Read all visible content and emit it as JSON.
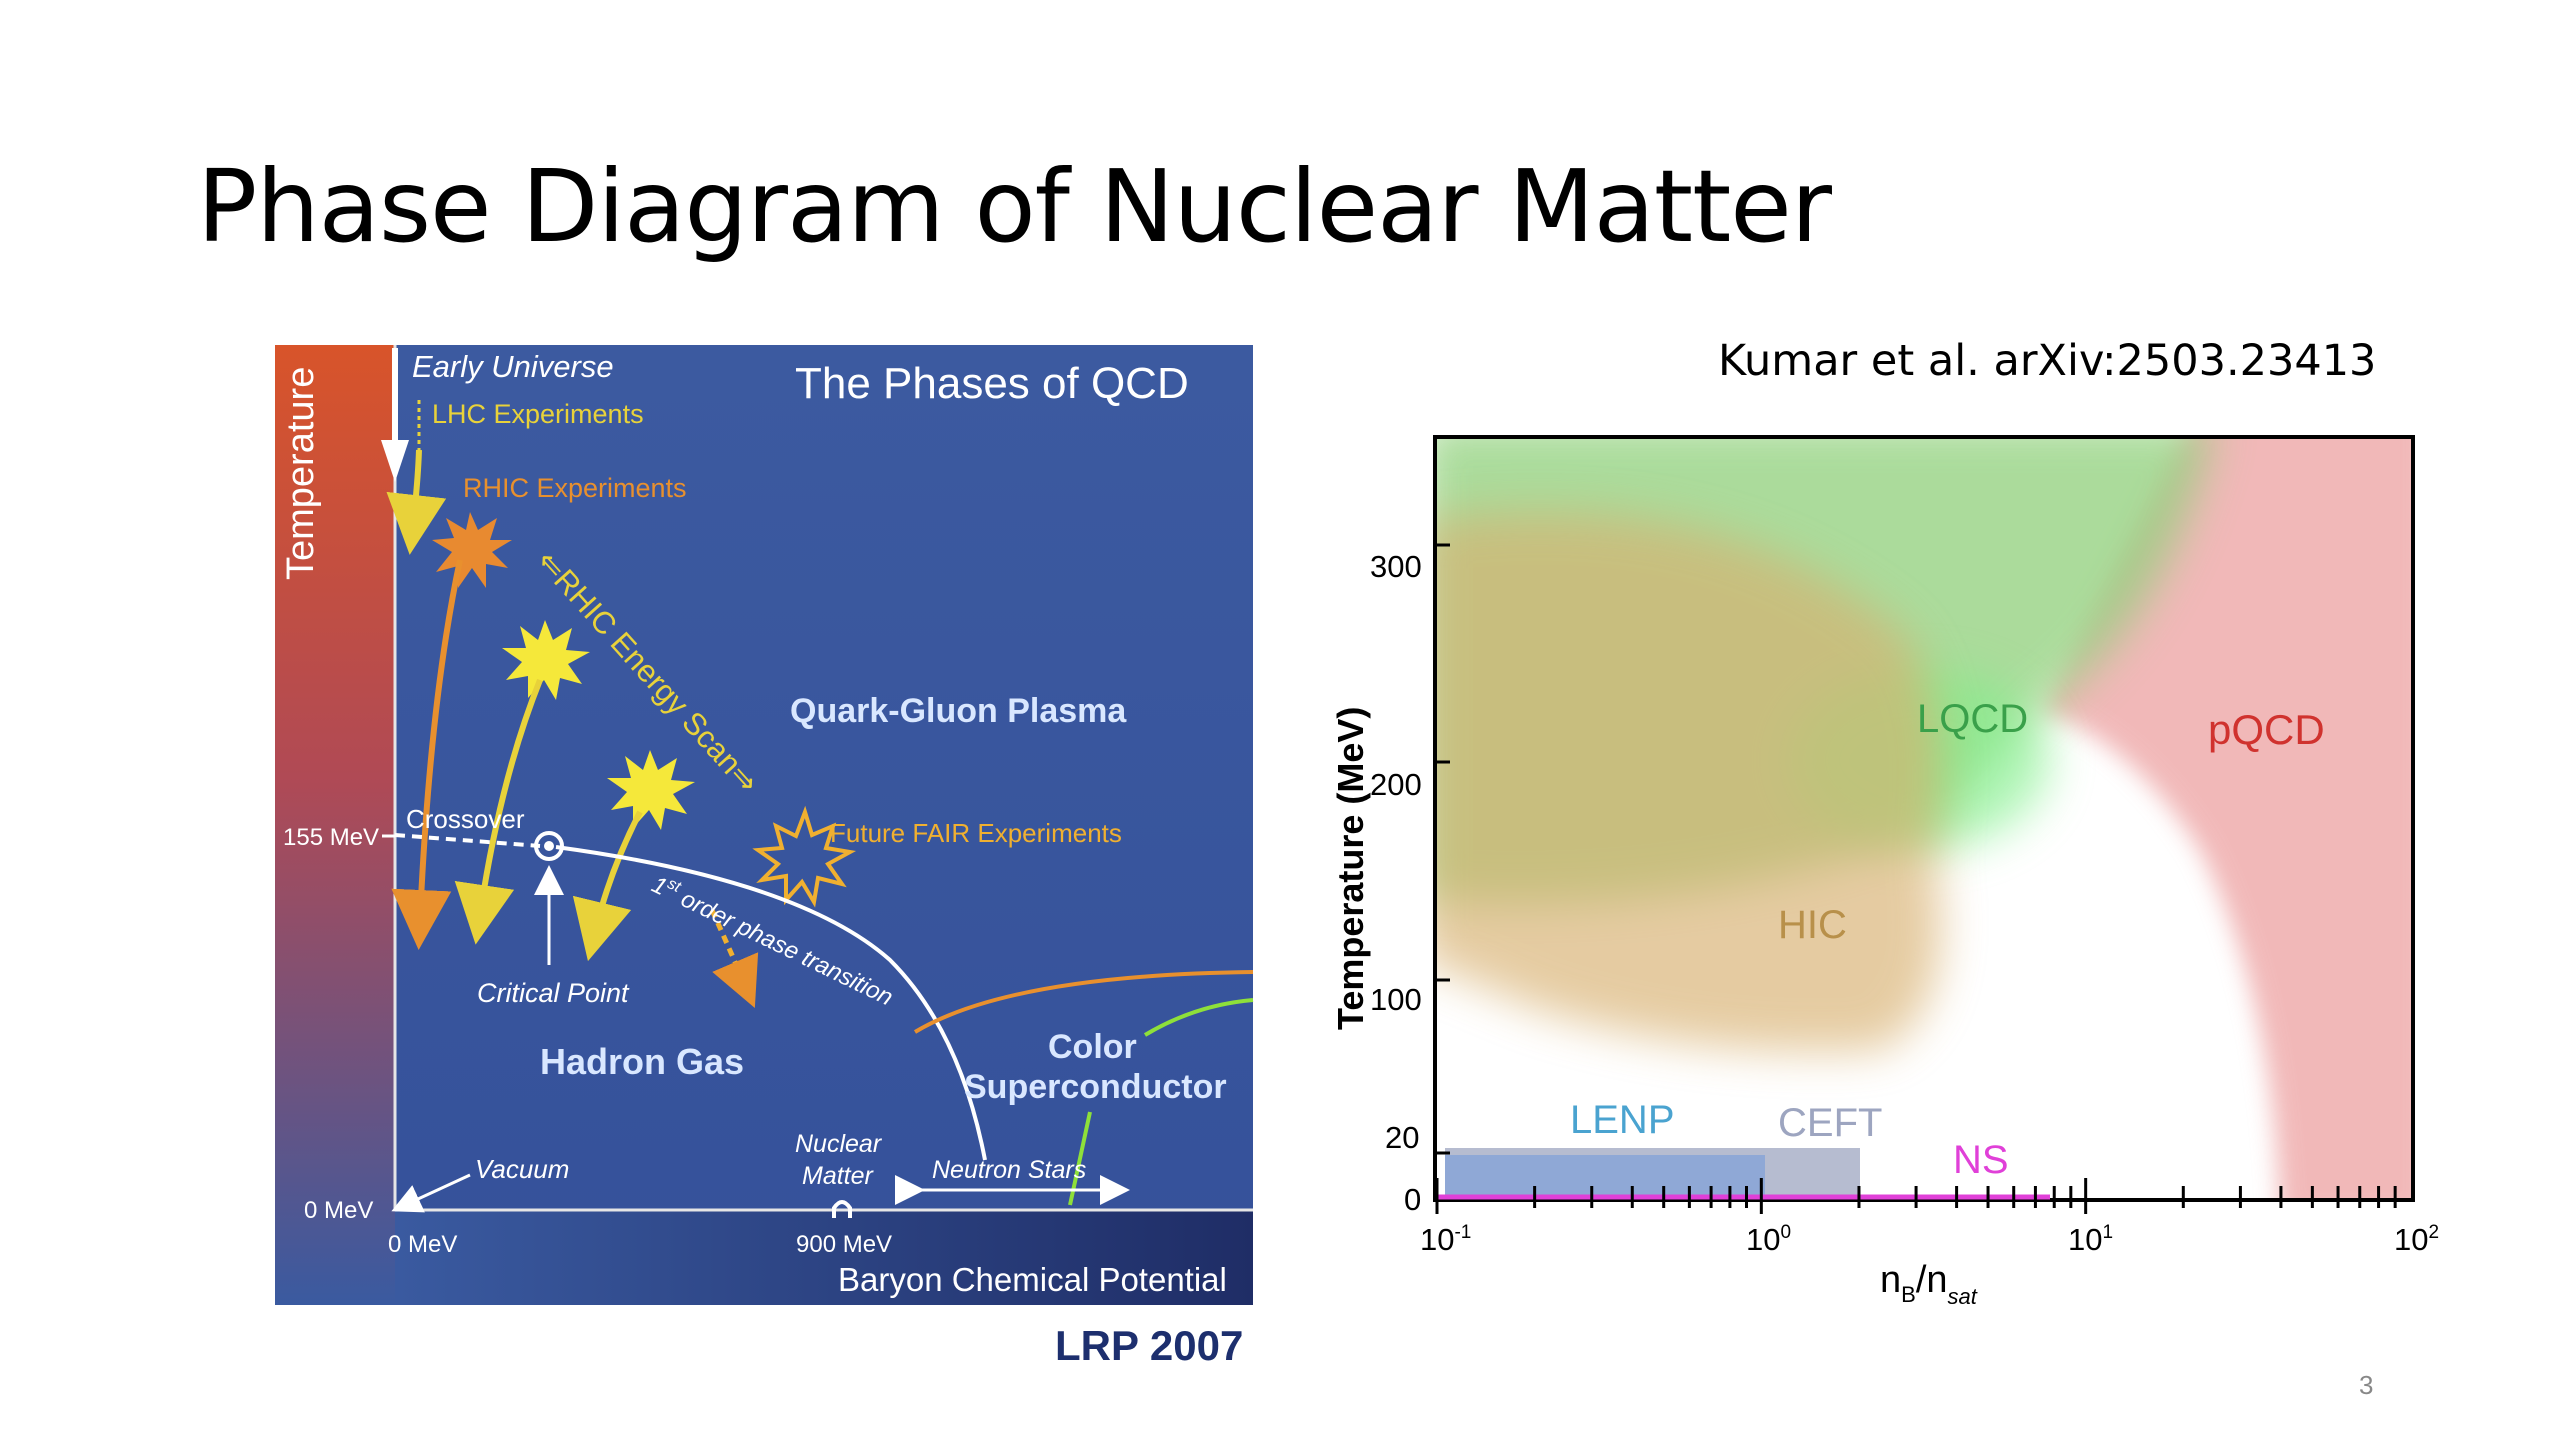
{
  "slide": {
    "title": "Phase Diagram of Nuclear Matter",
    "page_number": "3"
  },
  "qcd_diagram": {
    "title": "The Phases of QCD",
    "y_axis_label": "Temperature",
    "x_axis_label": "Baryon Chemical Potential",
    "y_ticks": [
      "155 MeV",
      "0 MeV"
    ],
    "x_ticks": [
      "0 MeV",
      "900 MeV"
    ],
    "labels": {
      "early_universe": "Early Universe",
      "lhc": "LHC Experiments",
      "rhic": "RHIC Experiments",
      "rhic_scan": "⇐RHIC Energy Scan⇒",
      "qgp": "Quark-Gluon Plasma",
      "crossover": "Crossover",
      "fair": "Future FAIR Experiments",
      "first_order_sup": "st",
      "first_order_pre": "1",
      "first_order_post": " order phase transition",
      "critical_point": "Critical Point",
      "hadron_gas": "Hadron Gas",
      "color_1": "Color",
      "color_2": "Superconductor",
      "nuclear_1": "Nuclear",
      "nuclear_2": "Matter",
      "neutron_stars": "Neutron Stars",
      "vacuum": "Vacuum"
    },
    "source": "LRP 2007",
    "colors": {
      "background": "#3a59a0",
      "qgp_text": "#d9e7ff",
      "lhc": "#e8d23a",
      "rhic": "#e8902e",
      "fair": "#f0b030"
    }
  },
  "kumar_chart": {
    "reference": "Kumar et al. arXiv:2503.23413",
    "y_label": "Temperature (MeV)",
    "x_label_main": "n",
    "x_label_sub1": "B",
    "x_label_sep": "/n",
    "x_label_sub2": "sat",
    "y_ticks": [
      "300",
      "200",
      "100",
      "20",
      "0"
    ],
    "x_ticks_base": [
      "10",
      "10",
      "10",
      "10"
    ],
    "x_ticks_exp": [
      "-1",
      "0",
      "1",
      "2"
    ],
    "regions": {
      "lqcd": "LQCD",
      "pqcd": "pQCD",
      "hic": "HIC",
      "lenp": "LENP",
      "ceft": "CEFT",
      "ns": "NS"
    },
    "colors": {
      "lqcd": "#7fe07f",
      "pqcd": "#e88a8a",
      "hic": "#d8b070",
      "lenp": "#4aa3d0",
      "ceft": "#9da5c0",
      "ns": "#e040d8"
    }
  },
  "chart_data": {
    "type": "area",
    "title": "",
    "xlabel": "nB/nsat",
    "ylabel": "Temperature (MeV)",
    "x_scale": "log",
    "xlim": [
      0.1,
      100
    ],
    "ylim": [
      0,
      350
    ],
    "x_ticks": [
      0.1,
      1,
      10,
      100
    ],
    "y_ticks": [
      0,
      20,
      100,
      200,
      300
    ],
    "series": [
      {
        "name": "LQCD"
      },
      {
        "name": "pQCD"
      },
      {
        "name": "HIC"
      },
      {
        "name": "LENP"
      },
      {
        "name": "CEFT"
      },
      {
        "name": "NS"
      }
    ]
  }
}
